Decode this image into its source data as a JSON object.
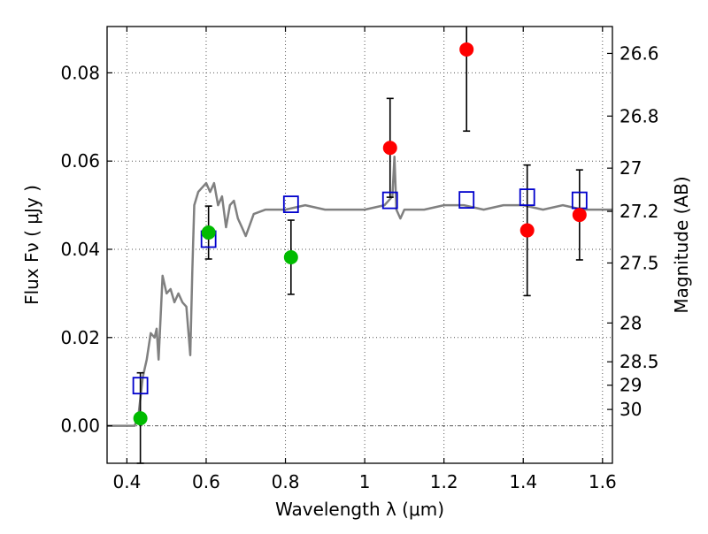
{
  "chart_data": {
    "type": "scatter",
    "xlabel": "Wavelength  λ (μm)",
    "ylabel": "Flux  Fν  ( μJy )",
    "y2label": "Magnitude (AB)",
    "xlim": [
      0.35,
      1.625
    ],
    "ylim": [
      -0.0085,
      0.0905
    ],
    "grid": true,
    "x_ticks": [
      0.4,
      0.6,
      0.8,
      1.0,
      1.2,
      1.4,
      1.6
    ],
    "x_tick_labels": [
      "0.4",
      "0.6",
      "0.8",
      "1",
      "1.2",
      "1.4",
      "1.6"
    ],
    "y_ticks": [
      0.0,
      0.02,
      0.04,
      0.06,
      0.08
    ],
    "y_tick_labels": [
      "0.00",
      "0.02",
      "0.04",
      "0.06",
      "0.08"
    ],
    "y2_ticks": [
      {
        "label": "26.6",
        "flux": 0.0844
      },
      {
        "label": "26.8",
        "flux": 0.0702
      },
      {
        "label": "27",
        "flux": 0.0584
      },
      {
        "label": "27.2",
        "flux": 0.0486
      },
      {
        "label": "27.5",
        "flux": 0.0369
      },
      {
        "label": "28",
        "flux": 0.0233
      },
      {
        "label": "28.5",
        "flux": 0.0145
      },
      {
        "label": "29",
        "flux": 0.0092
      },
      {
        "label": "30",
        "flux": 0.0037
      }
    ],
    "colors": {
      "model": "#808080",
      "model_points": "#0000cc",
      "green_points": "#00bb00",
      "red_points": "#ff0000",
      "errorbar": "#000000",
      "grid": "#555555"
    },
    "series": [
      {
        "marker": "line",
        "x": [
          0.35,
          0.4,
          0.42,
          0.43,
          0.44,
          0.45,
          0.46,
          0.47,
          0.475,
          0.48,
          0.49,
          0.5,
          0.51,
          0.52,
          0.53,
          0.54,
          0.55,
          0.56,
          0.565,
          0.57,
          0.58,
          0.59,
          0.6,
          0.61,
          0.62,
          0.63,
          0.64,
          0.65,
          0.66,
          0.67,
          0.68,
          0.69,
          0.7,
          0.72,
          0.75,
          0.8,
          0.85,
          0.9,
          0.95,
          1.0,
          1.05,
          1.06,
          1.07,
          1.075,
          1.08,
          1.09,
          1.1,
          1.15,
          1.2,
          1.25,
          1.3,
          1.35,
          1.4,
          1.45,
          1.5,
          1.55,
          1.6,
          1.625
        ],
        "y": [
          0.0,
          0.0,
          0.0,
          0.003,
          0.011,
          0.015,
          0.021,
          0.02,
          0.022,
          0.015,
          0.034,
          0.03,
          0.031,
          0.028,
          0.03,
          0.028,
          0.027,
          0.016,
          0.035,
          0.05,
          0.053,
          0.054,
          0.055,
          0.053,
          0.055,
          0.05,
          0.052,
          0.045,
          0.05,
          0.051,
          0.047,
          0.045,
          0.043,
          0.048,
          0.049,
          0.049,
          0.05,
          0.049,
          0.049,
          0.049,
          0.05,
          0.051,
          0.052,
          0.061,
          0.049,
          0.047,
          0.049,
          0.049,
          0.05,
          0.05,
          0.049,
          0.05,
          0.05,
          0.049,
          0.05,
          0.049,
          0.049,
          0.049
        ]
      },
      {
        "marker": "square",
        "x": [
          0.434,
          0.606,
          0.814,
          1.064,
          1.257,
          1.41,
          1.542
        ],
        "y": [
          0.0091,
          0.0423,
          0.0502,
          0.0511,
          0.0512,
          0.0518,
          0.0511
        ]
      },
      {
        "marker": "circle",
        "x": [
          0.434,
          0.606,
          0.814
        ],
        "y": [
          0.0017,
          0.0438,
          0.0382
        ],
        "err": [
          0.0103,
          0.006,
          0.0084
        ]
      },
      {
        "marker": "circle",
        "x": [
          1.064,
          1.257,
          1.41,
          1.542
        ],
        "y": [
          0.063,
          0.0853,
          0.0443,
          0.0478
        ],
        "err": [
          0.0112,
          0.0185,
          0.0148,
          0.0102
        ]
      }
    ]
  }
}
